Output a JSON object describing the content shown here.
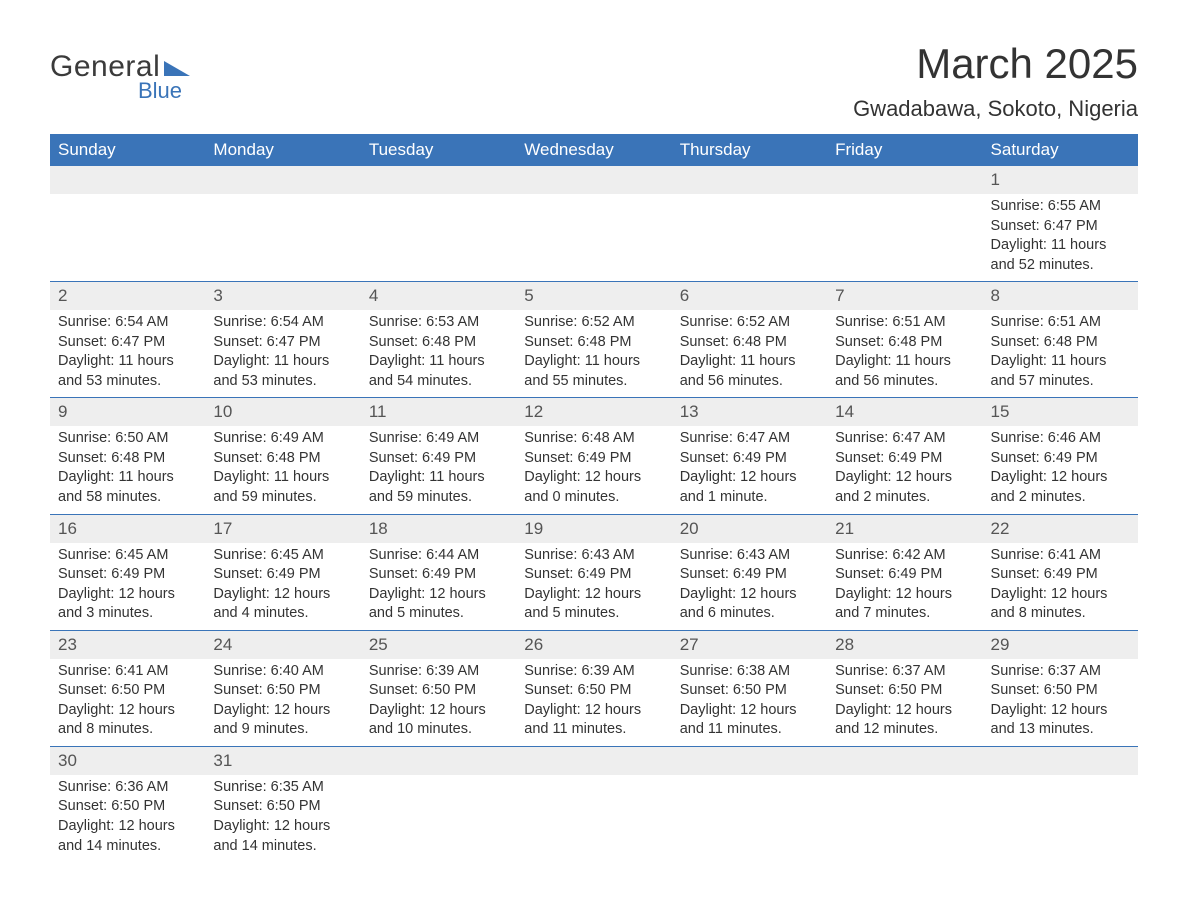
{
  "brand": {
    "word1": "General",
    "word2": "Blue",
    "triangle_color": "#3a74b8"
  },
  "title": "March 2025",
  "location": "Gwadabawa, Sokoto, Nigeria",
  "colors": {
    "header_bg": "#3a74b8",
    "header_text": "#ffffff",
    "daynum_bg": "#eeeeee",
    "row_border": "#3a74b8",
    "text": "#333333"
  },
  "columns": [
    "Sunday",
    "Monday",
    "Tuesday",
    "Wednesday",
    "Thursday",
    "Friday",
    "Saturday"
  ],
  "weeks": [
    [
      null,
      null,
      null,
      null,
      null,
      null,
      {
        "n": "1",
        "sr": "Sunrise: 6:55 AM",
        "ss": "Sunset: 6:47 PM",
        "dl": "Daylight: 11 hours and 52 minutes."
      }
    ],
    [
      {
        "n": "2",
        "sr": "Sunrise: 6:54 AM",
        "ss": "Sunset: 6:47 PM",
        "dl": "Daylight: 11 hours and 53 minutes."
      },
      {
        "n": "3",
        "sr": "Sunrise: 6:54 AM",
        "ss": "Sunset: 6:47 PM",
        "dl": "Daylight: 11 hours and 53 minutes."
      },
      {
        "n": "4",
        "sr": "Sunrise: 6:53 AM",
        "ss": "Sunset: 6:48 PM",
        "dl": "Daylight: 11 hours and 54 minutes."
      },
      {
        "n": "5",
        "sr": "Sunrise: 6:52 AM",
        "ss": "Sunset: 6:48 PM",
        "dl": "Daylight: 11 hours and 55 minutes."
      },
      {
        "n": "6",
        "sr": "Sunrise: 6:52 AM",
        "ss": "Sunset: 6:48 PM",
        "dl": "Daylight: 11 hours and 56 minutes."
      },
      {
        "n": "7",
        "sr": "Sunrise: 6:51 AM",
        "ss": "Sunset: 6:48 PM",
        "dl": "Daylight: 11 hours and 56 minutes."
      },
      {
        "n": "8",
        "sr": "Sunrise: 6:51 AM",
        "ss": "Sunset: 6:48 PM",
        "dl": "Daylight: 11 hours and 57 minutes."
      }
    ],
    [
      {
        "n": "9",
        "sr": "Sunrise: 6:50 AM",
        "ss": "Sunset: 6:48 PM",
        "dl": "Daylight: 11 hours and 58 minutes."
      },
      {
        "n": "10",
        "sr": "Sunrise: 6:49 AM",
        "ss": "Sunset: 6:48 PM",
        "dl": "Daylight: 11 hours and 59 minutes."
      },
      {
        "n": "11",
        "sr": "Sunrise: 6:49 AM",
        "ss": "Sunset: 6:49 PM",
        "dl": "Daylight: 11 hours and 59 minutes."
      },
      {
        "n": "12",
        "sr": "Sunrise: 6:48 AM",
        "ss": "Sunset: 6:49 PM",
        "dl": "Daylight: 12 hours and 0 minutes."
      },
      {
        "n": "13",
        "sr": "Sunrise: 6:47 AM",
        "ss": "Sunset: 6:49 PM",
        "dl": "Daylight: 12 hours and 1 minute."
      },
      {
        "n": "14",
        "sr": "Sunrise: 6:47 AM",
        "ss": "Sunset: 6:49 PM",
        "dl": "Daylight: 12 hours and 2 minutes."
      },
      {
        "n": "15",
        "sr": "Sunrise: 6:46 AM",
        "ss": "Sunset: 6:49 PM",
        "dl": "Daylight: 12 hours and 2 minutes."
      }
    ],
    [
      {
        "n": "16",
        "sr": "Sunrise: 6:45 AM",
        "ss": "Sunset: 6:49 PM",
        "dl": "Daylight: 12 hours and 3 minutes."
      },
      {
        "n": "17",
        "sr": "Sunrise: 6:45 AM",
        "ss": "Sunset: 6:49 PM",
        "dl": "Daylight: 12 hours and 4 minutes."
      },
      {
        "n": "18",
        "sr": "Sunrise: 6:44 AM",
        "ss": "Sunset: 6:49 PM",
        "dl": "Daylight: 12 hours and 5 minutes."
      },
      {
        "n": "19",
        "sr": "Sunrise: 6:43 AM",
        "ss": "Sunset: 6:49 PM",
        "dl": "Daylight: 12 hours and 5 minutes."
      },
      {
        "n": "20",
        "sr": "Sunrise: 6:43 AM",
        "ss": "Sunset: 6:49 PM",
        "dl": "Daylight: 12 hours and 6 minutes."
      },
      {
        "n": "21",
        "sr": "Sunrise: 6:42 AM",
        "ss": "Sunset: 6:49 PM",
        "dl": "Daylight: 12 hours and 7 minutes."
      },
      {
        "n": "22",
        "sr": "Sunrise: 6:41 AM",
        "ss": "Sunset: 6:49 PM",
        "dl": "Daylight: 12 hours and 8 minutes."
      }
    ],
    [
      {
        "n": "23",
        "sr": "Sunrise: 6:41 AM",
        "ss": "Sunset: 6:50 PM",
        "dl": "Daylight: 12 hours and 8 minutes."
      },
      {
        "n": "24",
        "sr": "Sunrise: 6:40 AM",
        "ss": "Sunset: 6:50 PM",
        "dl": "Daylight: 12 hours and 9 minutes."
      },
      {
        "n": "25",
        "sr": "Sunrise: 6:39 AM",
        "ss": "Sunset: 6:50 PM",
        "dl": "Daylight: 12 hours and 10 minutes."
      },
      {
        "n": "26",
        "sr": "Sunrise: 6:39 AM",
        "ss": "Sunset: 6:50 PM",
        "dl": "Daylight: 12 hours and 11 minutes."
      },
      {
        "n": "27",
        "sr": "Sunrise: 6:38 AM",
        "ss": "Sunset: 6:50 PM",
        "dl": "Daylight: 12 hours and 11 minutes."
      },
      {
        "n": "28",
        "sr": "Sunrise: 6:37 AM",
        "ss": "Sunset: 6:50 PM",
        "dl": "Daylight: 12 hours and 12 minutes."
      },
      {
        "n": "29",
        "sr": "Sunrise: 6:37 AM",
        "ss": "Sunset: 6:50 PM",
        "dl": "Daylight: 12 hours and 13 minutes."
      }
    ],
    [
      {
        "n": "30",
        "sr": "Sunrise: 6:36 AM",
        "ss": "Sunset: 6:50 PM",
        "dl": "Daylight: 12 hours and 14 minutes."
      },
      {
        "n": "31",
        "sr": "Sunrise: 6:35 AM",
        "ss": "Sunset: 6:50 PM",
        "dl": "Daylight: 12 hours and 14 minutes."
      },
      null,
      null,
      null,
      null,
      null
    ]
  ]
}
